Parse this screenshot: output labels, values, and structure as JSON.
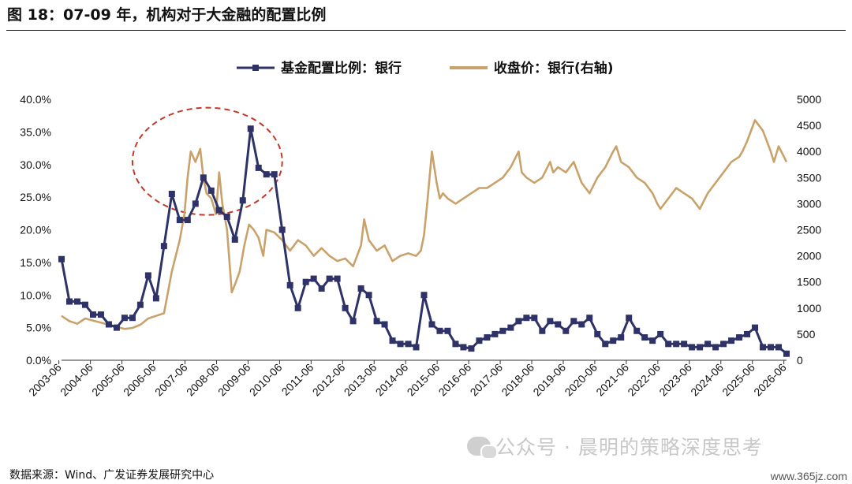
{
  "page": {
    "title": "图 18：07-09 年，机构对于大金融的配置比例",
    "source": "数据来源：Wind、广发证券发展研究中心",
    "watermark": "公众号 · 晨明的策略深度思考",
    "site": "www.365jz.com"
  },
  "chart_data": {
    "type": "line",
    "title": "",
    "xlabel": "",
    "ylabel": "",
    "x_ticks": [
      "2003-06",
      "2004-06",
      "2005-06",
      "2006-06",
      "2007-06",
      "2008-06",
      "2009-06",
      "2010-06",
      "2011-06",
      "2012-06",
      "2013-06",
      "2014-06",
      "2015-06",
      "2016-06",
      "2017-06",
      "2018-06",
      "2019-06",
      "2020-06",
      "2021-06",
      "2022-06",
      "2023-06",
      "2024-06",
      "2025-06",
      "2026-06"
    ],
    "xlim": [
      2003.5,
      2026.5
    ],
    "y_left": {
      "lim": [
        0,
        40
      ],
      "ticks": [
        0,
        5,
        10,
        15,
        20,
        25,
        30,
        35,
        40
      ],
      "labels": [
        "0.0%",
        "5.0%",
        "10.0%",
        "15.0%",
        "20.0%",
        "25.0%",
        "30.0%",
        "35.0%",
        "40.0%"
      ]
    },
    "y_right": {
      "lim": [
        0,
        5000
      ],
      "ticks": [
        0,
        500,
        1000,
        1500,
        2000,
        2500,
        3000,
        3500,
        4000,
        4500,
        5000
      ],
      "labels": [
        "0",
        "500",
        "1000",
        "1500",
        "2000",
        "2500",
        "3000",
        "3500",
        "4000",
        "4500",
        "5000"
      ]
    },
    "legend_position": "top-center",
    "annotation": {
      "type": "ellipse",
      "style": "dashed",
      "color": "#c0392b",
      "x_range": [
        2005.75,
        2010.5
      ],
      "y_center_pct": 30.5
    },
    "series": [
      {
        "name": "基金配置比例：银行",
        "axis": "left",
        "color": "#2e3266",
        "marker": "square",
        "x": [
          2003.5,
          2003.75,
          2004.0,
          2004.25,
          2004.5,
          2004.75,
          2005.0,
          2005.25,
          2005.5,
          2005.75,
          2006.0,
          2006.25,
          2006.5,
          2006.75,
          2007.0,
          2007.25,
          2007.5,
          2007.75,
          2008.0,
          2008.25,
          2008.5,
          2008.75,
          2009.0,
          2009.25,
          2009.5,
          2009.75,
          2010.0,
          2010.25,
          2010.5,
          2010.75,
          2011.0,
          2011.25,
          2011.5,
          2011.75,
          2012.0,
          2012.25,
          2012.5,
          2012.75,
          2013.0,
          2013.25,
          2013.5,
          2013.75,
          2014.0,
          2014.25,
          2014.5,
          2014.75,
          2015.0,
          2015.25,
          2015.5,
          2015.75,
          2016.0,
          2016.25,
          2016.5,
          2016.75,
          2017.0,
          2017.25,
          2017.5,
          2017.75,
          2018.0,
          2018.25,
          2018.5,
          2018.75,
          2019.0,
          2019.25,
          2019.5,
          2019.75,
          2020.0,
          2020.25,
          2020.5,
          2020.75,
          2021.0,
          2021.25,
          2021.5,
          2021.75,
          2022.0,
          2022.25,
          2022.5,
          2022.75,
          2023.0,
          2023.25,
          2023.5,
          2023.75,
          2024.0,
          2024.25,
          2024.5,
          2024.75,
          2025.0,
          2025.25,
          2025.5,
          2025.75,
          2026.0,
          2026.25,
          2026.5
        ],
        "values": [
          15.5,
          9.0,
          9.0,
          8.5,
          7.0,
          7.0,
          5.5,
          5.0,
          6.5,
          6.5,
          8.5,
          13.0,
          9.5,
          17.5,
          25.5,
          21.5,
          21.5,
          24.0,
          28.0,
          26.0,
          23.0,
          22.0,
          18.5,
          24.5,
          35.5,
          29.5,
          28.5,
          28.5,
          20.0,
          11.5,
          8.0,
          12.0,
          12.5,
          11.0,
          12.5,
          12.5,
          8.0,
          6.0,
          11.0,
          10.0,
          6.0,
          5.5,
          3.0,
          2.5,
          2.5,
          2.0,
          10.0,
          5.5,
          4.5,
          4.5,
          2.5,
          2.0,
          1.8,
          3.0,
          3.5,
          4.0,
          4.5,
          5.0,
          6.0,
          6.5,
          6.5,
          4.5,
          6.0,
          5.5,
          4.5,
          6.0,
          5.5,
          6.5,
          4.0,
          2.5,
          3.0,
          3.5,
          6.5,
          4.5,
          3.5,
          3.0,
          4.0,
          2.5,
          2.5,
          2.5,
          2.0,
          2.0,
          2.5,
          2.0,
          2.5,
          3.0,
          3.5,
          4.0,
          5.0,
          2.0,
          2.0,
          2.0,
          1.0
        ]
      },
      {
        "name": "收盘价：银行(右轴)",
        "axis": "right",
        "color": "#c9a26b",
        "marker": "none",
        "x": [
          2003.5,
          2003.75,
          2004.0,
          2004.25,
          2004.5,
          2004.75,
          2005.0,
          2005.25,
          2005.5,
          2005.75,
          2006.0,
          2006.25,
          2006.5,
          2006.75,
          2007.0,
          2007.25,
          2007.4,
          2007.5,
          2007.6,
          2007.75,
          2007.9,
          2008.0,
          2008.1,
          2008.25,
          2008.4,
          2008.5,
          2008.6,
          2008.75,
          2008.9,
          2009.0,
          2009.15,
          2009.3,
          2009.45,
          2009.6,
          2009.75,
          2009.9,
          2010.0,
          2010.25,
          2010.5,
          2010.75,
          2011.0,
          2011.25,
          2011.5,
          2011.75,
          2012.0,
          2012.25,
          2012.5,
          2012.75,
          2013.0,
          2013.1,
          2013.25,
          2013.5,
          2013.75,
          2014.0,
          2014.25,
          2014.5,
          2014.75,
          2014.9,
          2015.0,
          2015.1,
          2015.25,
          2015.4,
          2015.5,
          2015.6,
          2015.75,
          2016.0,
          2016.25,
          2016.5,
          2016.75,
          2017.0,
          2017.25,
          2017.5,
          2017.75,
          2018.0,
          2018.1,
          2018.25,
          2018.5,
          2018.75,
          2019.0,
          2019.1,
          2019.25,
          2019.5,
          2019.75,
          2020.0,
          2020.25,
          2020.5,
          2020.75,
          2021.0,
          2021.1,
          2021.25,
          2021.5,
          2021.75,
          2022.0,
          2022.25,
          2022.4,
          2022.5,
          2022.75,
          2023.0,
          2023.25,
          2023.5,
          2023.75,
          2024.0,
          2024.25,
          2024.5,
          2024.75,
          2025.0,
          2025.1,
          2025.25,
          2025.5,
          2025.75,
          2026.0,
          2026.1,
          2026.25,
          2026.5
        ],
        "values": [
          850,
          750,
          700,
          800,
          760,
          720,
          680,
          640,
          600,
          620,
          680,
          800,
          850,
          900,
          1700,
          2300,
          2800,
          3500,
          4000,
          3800,
          4050,
          3500,
          3200,
          3100,
          2800,
          3600,
          3000,
          2500,
          1300,
          1450,
          1700,
          2200,
          2600,
          2500,
          2350,
          2000,
          2500,
          2450,
          2300,
          2100,
          2300,
          2200,
          2000,
          2150,
          2000,
          1900,
          1950,
          1800,
          2200,
          2700,
          2300,
          2100,
          2200,
          1900,
          2000,
          2050,
          2000,
          2100,
          2400,
          3000,
          4000,
          3400,
          3100,
          3200,
          3100,
          3000,
          3100,
          3200,
          3300,
          3300,
          3400,
          3500,
          3700,
          4000,
          3600,
          3500,
          3400,
          3500,
          3800,
          3600,
          3700,
          3600,
          3800,
          3400,
          3200,
          3500,
          3700,
          4000,
          4100,
          3800,
          3700,
          3500,
          3400,
          3200,
          3000,
          2900,
          3100,
          3300,
          3200,
          3100,
          2900,
          3200,
          3400,
          3600,
          3800,
          3900,
          4000,
          4200,
          4600,
          4400,
          4000,
          3800,
          4100,
          3800
        ]
      }
    ]
  }
}
